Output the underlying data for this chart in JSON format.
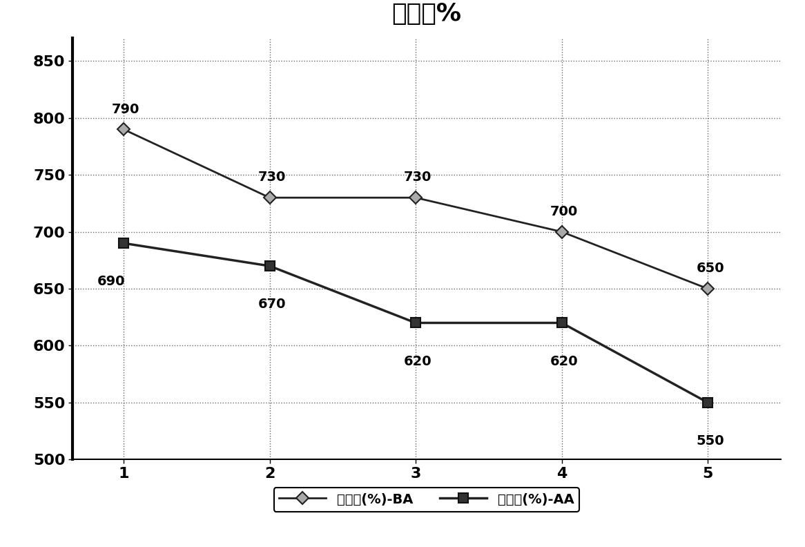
{
  "title": "伸长率%",
  "x_values": [
    1,
    2,
    3,
    4,
    5
  ],
  "series_BA": [
    790,
    730,
    730,
    700,
    650
  ],
  "series_AA": [
    690,
    670,
    620,
    620,
    550
  ],
  "series_BA_label": "伸长率(%)-BA",
  "series_AA_label": "伸长率(%)-AA",
  "ylim": [
    500,
    870
  ],
  "yticks": [
    500,
    550,
    600,
    650,
    700,
    750,
    800,
    850
  ],
  "xticks": [
    1,
    2,
    3,
    4,
    5
  ],
  "background_color": "#ffffff",
  "plot_bg_color": "#ffffff",
  "grid_color": "#555555",
  "line_color_BA": "#222222",
  "line_color_AA": "#222222",
  "marker_BA": "D",
  "marker_AA": "s",
  "title_fontsize": 26,
  "annotation_fontsize": 14,
  "legend_fontsize": 14,
  "tick_fontsize": 16
}
